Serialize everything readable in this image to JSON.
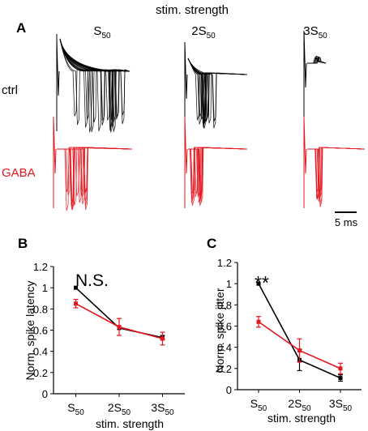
{
  "colors": {
    "ctrl": "#000000",
    "gaba": "#e4171e"
  },
  "panel_a": {
    "letter": "A",
    "header": "stim. strength",
    "conditions": [
      {
        "base": "S",
        "sub": "50"
      },
      {
        "base": "2S",
        "sub": "50"
      },
      {
        "base": "3S",
        "sub": "50"
      }
    ],
    "row_labels": {
      "ctrl": "ctrl",
      "gaba": "GABA"
    },
    "scale_bar": "5 ms"
  },
  "chart_data": [
    {
      "type": "line",
      "panel": "B",
      "title": "N.S.",
      "ylabel": "Norm. spike latency",
      "xlabel": "stim. strength",
      "categories": [
        "S50",
        "2S50",
        "3S50"
      ],
      "category_labels": [
        {
          "base": "S",
          "sub": "50"
        },
        {
          "base": "2S",
          "sub": "50"
        },
        {
          "base": "3S",
          "sub": "50"
        }
      ],
      "ylim": [
        0,
        1.2
      ],
      "yticks": [
        "0",
        "0.2",
        "0.4",
        "0.6",
        "0.8",
        "1",
        "1.2"
      ],
      "series": [
        {
          "color": "#000000",
          "values": [
            1.0,
            0.62,
            0.53
          ],
          "errors": [
            0,
            0,
            0.02
          ]
        },
        {
          "color": "#e4171e",
          "values": [
            0.85,
            0.63,
            0.52
          ],
          "errors": [
            0.04,
            0.08,
            0.06
          ]
        }
      ]
    },
    {
      "type": "line",
      "panel": "C",
      "title": "**",
      "ylabel": "Norm. spike jitter",
      "xlabel": "stim. strength",
      "categories": [
        "S50",
        "2S50",
        "3S50"
      ],
      "category_labels": [
        {
          "base": "S",
          "sub": "50"
        },
        {
          "base": "2S",
          "sub": "50"
        },
        {
          "base": "3S",
          "sub": "50"
        }
      ],
      "ylim": [
        0,
        1.2
      ],
      "yticks": [
        "0",
        "0.2",
        "0.4",
        "0.6",
        "0.8",
        "1",
        "1.2"
      ],
      "series": [
        {
          "color": "#000000",
          "values": [
            1.0,
            0.28,
            0.11
          ],
          "errors": [
            0,
            0.1,
            0.03
          ]
        },
        {
          "color": "#e4171e",
          "values": [
            0.64,
            0.37,
            0.2
          ],
          "errors": [
            0.05,
            0.11,
            0.05
          ]
        }
      ]
    }
  ]
}
